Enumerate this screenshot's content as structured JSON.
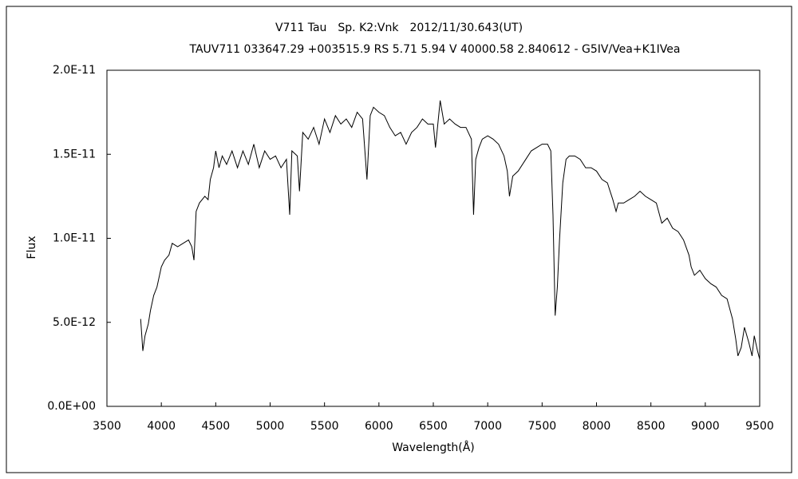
{
  "chart_data": {
    "type": "line",
    "title": "V711 Tau　Sp. K2:Vnk　2012/11/30.643(UT)",
    "subtitle": "TAUV711 033647.29 +003515.9 RS 5.71 5.94 V 40000.58 2.840612 - G5IV/Vea+K1IVea",
    "xlabel": "Wavelength(Å)",
    "ylabel": "Flux",
    "color": "#000000",
    "xlim": [
      3500,
      9500
    ],
    "xticks": [
      3500,
      4000,
      4500,
      5000,
      5500,
      6000,
      6500,
      7000,
      7500,
      8000,
      8500,
      9000,
      9500
    ],
    "ylim": [
      0,
      2e-11
    ],
    "yticks": [
      {
        "value": 0,
        "label": "0.0E+00"
      },
      {
        "value": 5e-12,
        "label": "5.0E-12"
      },
      {
        "value": 1e-11,
        "label": "1.0E-11"
      },
      {
        "value": 1.5e-11,
        "label": "1.5E-11"
      },
      {
        "value": 2e-11,
        "label": "2.0E-11"
      }
    ],
    "x": [
      3810,
      3830,
      3850,
      3880,
      3900,
      3930,
      3960,
      4000,
      4030,
      4070,
      4100,
      4150,
      4200,
      4250,
      4280,
      4300,
      4320,
      4350,
      4400,
      4430,
      4450,
      4480,
      4500,
      4530,
      4560,
      4600,
      4650,
      4700,
      4750,
      4800,
      4850,
      4900,
      4950,
      5000,
      5050,
      5100,
      5150,
      5180,
      5200,
      5250,
      5270,
      5300,
      5350,
      5400,
      5450,
      5500,
      5550,
      5600,
      5650,
      5700,
      5750,
      5800,
      5850,
      5890,
      5920,
      5950,
      6000,
      6050,
      6100,
      6150,
      6200,
      6250,
      6300,
      6350,
      6400,
      6450,
      6500,
      6520,
      6563,
      6600,
      6650,
      6700,
      6750,
      6800,
      6850,
      6870,
      6890,
      6920,
      6950,
      7000,
      7050,
      7100,
      7150,
      7180,
      7200,
      7230,
      7280,
      7350,
      7400,
      7450,
      7500,
      7550,
      7580,
      7600,
      7620,
      7640,
      7660,
      7690,
      7720,
      7750,
      7800,
      7850,
      7900,
      7950,
      8000,
      8050,
      8100,
      8150,
      8180,
      8200,
      8250,
      8300,
      8350,
      8400,
      8450,
      8500,
      8550,
      8600,
      8650,
      8700,
      8750,
      8800,
      8850,
      8870,
      8900,
      8950,
      9000,
      9050,
      9100,
      9150,
      9200,
      9250,
      9280,
      9300,
      9330,
      9360,
      9400,
      9430,
      9450,
      9480,
      9500
    ],
    "values": [
      5.2e-12,
      3.3e-12,
      4.2e-12,
      4.9e-12,
      5.7e-12,
      6.6e-12,
      7.1e-12,
      8.3e-12,
      8.7e-12,
      9e-12,
      9.7e-12,
      9.5e-12,
      9.7e-12,
      9.9e-12,
      9.5e-12,
      8.7e-12,
      1.16e-11,
      1.21e-11,
      1.25e-11,
      1.23e-11,
      1.35e-11,
      1.42e-11,
      1.52e-11,
      1.42e-11,
      1.49e-11,
      1.44e-11,
      1.52e-11,
      1.42e-11,
      1.52e-11,
      1.44e-11,
      1.56e-11,
      1.42e-11,
      1.52e-11,
      1.47e-11,
      1.49e-11,
      1.42e-11,
      1.47e-11,
      1.14e-11,
      1.52e-11,
      1.49e-11,
      1.28e-11,
      1.63e-11,
      1.59e-11,
      1.66e-11,
      1.56e-11,
      1.71e-11,
      1.63e-11,
      1.73e-11,
      1.68e-11,
      1.71e-11,
      1.66e-11,
      1.75e-11,
      1.71e-11,
      1.35e-11,
      1.73e-11,
      1.78e-11,
      1.75e-11,
      1.73e-11,
      1.66e-11,
      1.61e-11,
      1.63e-11,
      1.56e-11,
      1.63e-11,
      1.66e-11,
      1.71e-11,
      1.68e-11,
      1.68e-11,
      1.54e-11,
      1.82e-11,
      1.68e-11,
      1.71e-11,
      1.68e-11,
      1.66e-11,
      1.66e-11,
      1.59e-11,
      1.14e-11,
      1.47e-11,
      1.54e-11,
      1.59e-11,
      1.61e-11,
      1.59e-11,
      1.56e-11,
      1.49e-11,
      1.4e-11,
      1.25e-11,
      1.37e-11,
      1.4e-11,
      1.47e-11,
      1.52e-11,
      1.54e-11,
      1.56e-11,
      1.56e-11,
      1.52e-11,
      1.14e-11,
      5.4e-12,
      7.1e-12,
      9.9e-12,
      1.33e-11,
      1.47e-11,
      1.49e-11,
      1.49e-11,
      1.47e-11,
      1.42e-11,
      1.42e-11,
      1.4e-11,
      1.35e-11,
      1.33e-11,
      1.23e-11,
      1.16e-11,
      1.21e-11,
      1.21e-11,
      1.23e-11,
      1.25e-11,
      1.28e-11,
      1.25e-11,
      1.23e-11,
      1.21e-11,
      1.09e-11,
      1.12e-11,
      1.06e-11,
      1.04e-11,
      9.9e-12,
      9e-12,
      8.3e-12,
      7.8e-12,
      8.1e-12,
      7.6e-12,
      7.3e-12,
      7.1e-12,
      6.6e-12,
      6.4e-12,
      5.2e-12,
      4e-12,
      3e-12,
      3.5e-12,
      4.7e-12,
      3.8e-12,
      3e-12,
      4.2e-12,
      3.3e-12,
      2.8e-12
    ]
  }
}
